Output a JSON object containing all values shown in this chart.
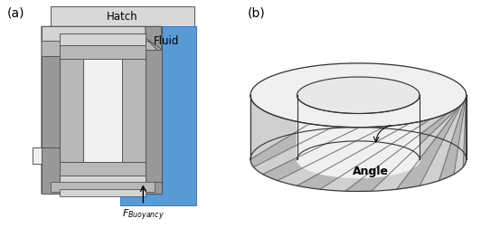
{
  "fig_width": 5.32,
  "fig_height": 2.53,
  "dpi": 100,
  "bg_color": "#ffffff",
  "label_a": "(a)",
  "label_b": "(b)",
  "hatch_label": "Hatch",
  "fluid_label": "Fluid",
  "angle_label": "Angle",
  "hatch_color": "#d8d8d8",
  "fluid_color": "#5b9bd5",
  "gray_very_light": "#f0f0f0",
  "gray_light": "#d4d4d4",
  "gray_mid": "#b8b8b8",
  "gray_dark": "#999999",
  "gray_darker": "#808080",
  "outline": "#555555",
  "impeller_light": "#f0f0f0",
  "impeller_mid": "#d0d0d0",
  "impeller_dark": "#a0a0a0",
  "impeller_outline": "#333333"
}
